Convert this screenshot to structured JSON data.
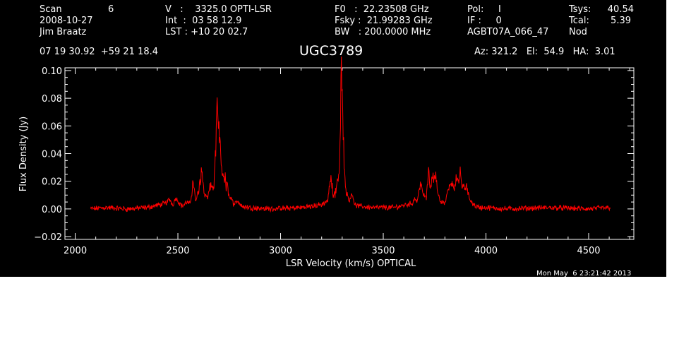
{
  "header": {
    "scan_label": "Scan",
    "scan_value": "6",
    "date": "2008-10-27",
    "observer": "Jim Braatz",
    "v_line": "V   :    3325.0 OPTI-LSR",
    "int_line": "Int  :  03 58 12.9",
    "lst_line": "LST : +10 20 02.7",
    "f0_line": "F0   :  22.23508 GHz",
    "fsky_line": "Fsky :  21.99283 GHz",
    "bw_line": "BW   : 200.0000 MHz",
    "pol_line": "Pol:     I",
    "if_line": "IF :     0",
    "project": "AGBT07A_066_47",
    "tsys_label": "Tsys:",
    "tsys_value": "40.54",
    "tcal_label": "Tcal:",
    "tcal_value": "5.39",
    "mode": "Nod",
    "coords": "07 19 30.92  +59 21 18.4",
    "source": "UGC3789",
    "az_el_ha": "Az: 321.2   El:  54.9   HA:  3.01",
    "timestamp": "Mon May  6 23:21:42 2013"
  },
  "chart_data": {
    "type": "line",
    "xlabel": "LSR Velocity (km/s) OPTICAL",
    "ylabel": "Flux Density (Jy)",
    "xlim": [
      1950,
      4720
    ],
    "ylim": [
      -0.022,
      0.102
    ],
    "x_ticks": [
      2000,
      2500,
      3000,
      3500,
      4000,
      4500
    ],
    "x_tick_labels": [
      "2000",
      "2500",
      "3000",
      "3500",
      "4000",
      "4500"
    ],
    "y_ticks": [
      -0.02,
      0.0,
      0.02,
      0.04,
      0.06,
      0.08,
      0.1
    ],
    "y_tick_labels": [
      "−0.02",
      "0.00",
      "0.02",
      "0.04",
      "0.06",
      "0.08",
      "0.10"
    ],
    "grid": false,
    "series": [
      {
        "color": "#ff0000",
        "x": [
          2075,
          2150,
          2250,
          2350,
          2440,
          2460,
          2475,
          2490,
          2520,
          2545,
          2560,
          2575,
          2585,
          2600,
          2615,
          2630,
          2645,
          2660,
          2675,
          2685,
          2690,
          2695,
          2700,
          2705,
          2710,
          2715,
          2720,
          2725,
          2730,
          2735,
          2740,
          2745,
          2755,
          2770,
          2790,
          2810,
          2850,
          2950,
          3100,
          3200,
          3230,
          3245,
          3255,
          3265,
          3275,
          3285,
          3290,
          3295,
          3300,
          3305,
          3310,
          3320,
          3335,
          3350,
          3360,
          3380,
          3450,
          3550,
          3640,
          3655,
          3665,
          3680,
          3695,
          3710,
          3720,
          3730,
          3740,
          3748,
          3755,
          3765,
          3780,
          3800,
          3815,
          3830,
          3845,
          3855,
          3865,
          3875,
          3885,
          3890,
          3895,
          3905,
          3915,
          3925,
          3935,
          3950,
          3970,
          4000,
          4100,
          4300,
          4500,
          4605
        ],
        "y": [
          0.0,
          0.001,
          0.0,
          0.001,
          0.004,
          0.007,
          0.003,
          0.008,
          0.002,
          0.005,
          0.003,
          0.021,
          0.006,
          0.012,
          0.028,
          0.01,
          0.008,
          0.018,
          0.014,
          0.045,
          0.072,
          0.062,
          0.055,
          0.05,
          0.038,
          0.025,
          0.03,
          0.018,
          0.024,
          0.012,
          0.026,
          0.01,
          0.008,
          0.004,
          0.006,
          0.002,
          0.001,
          0.0,
          0.001,
          0.003,
          0.006,
          0.023,
          0.012,
          0.01,
          0.02,
          0.026,
          0.055,
          0.098,
          0.08,
          0.06,
          0.028,
          0.012,
          0.006,
          0.012,
          0.003,
          0.002,
          0.001,
          0.001,
          0.004,
          0.008,
          0.005,
          0.019,
          0.01,
          0.008,
          0.03,
          0.014,
          0.025,
          0.022,
          0.028,
          0.01,
          0.005,
          0.004,
          0.014,
          0.02,
          0.016,
          0.022,
          0.018,
          0.026,
          0.014,
          0.02,
          0.013,
          0.016,
          0.01,
          0.006,
          0.004,
          0.002,
          0.001,
          0.001,
          0.0,
          0.001,
          0.0,
          0.001
        ]
      }
    ]
  }
}
